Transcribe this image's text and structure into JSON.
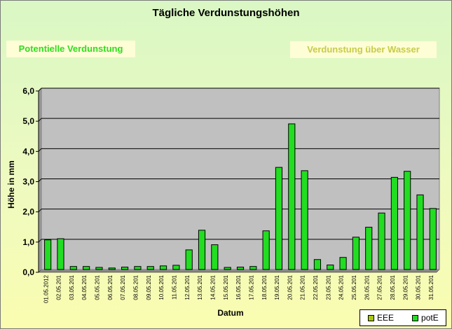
{
  "title": "Tägliche Verdunstungshöhen",
  "tabs": {
    "left_label": "Potentielle Verdunstung",
    "right_label": "Verdunstung über Wasser"
  },
  "legend": {
    "items": [
      {
        "label": "EEE",
        "color": "#a8c80e"
      },
      {
        "label": "potE",
        "color": "#22dd22"
      }
    ]
  },
  "colors": {
    "bar": "#22dd22",
    "plot_bg": "#c0c0c0",
    "grid": "#000000"
  },
  "chart_data": {
    "type": "bar",
    "title": "Tägliche Verdunstungshöhen",
    "xlabel": "Datum",
    "ylabel": "Höhe in mm",
    "ylim": [
      0,
      6
    ],
    "yticks": [
      "0,0",
      "1,0",
      "2,0",
      "3,0",
      "4,0",
      "5,0",
      "6,0"
    ],
    "grid": true,
    "legend_position": "bottom-right",
    "categories": [
      "01.05.2012",
      "02.05.201",
      "03.05.201",
      "04.05.201",
      "05.05.201",
      "06.05.201",
      "07.05.201",
      "08.05.201",
      "09.05.201",
      "10.05.201",
      "11.05.201",
      "12.05.201",
      "13.05.201",
      "14.05.201",
      "15.05.201",
      "16.05.201",
      "17.05.201",
      "18.05.201",
      "19.05.201",
      "20.05.201",
      "21.05.201",
      "22.05.201",
      "23.05.201",
      "24.05.201",
      "25.05.201",
      "26.05.201",
      "27.05.201",
      "28.05.201",
      "29.05.201",
      "30.05.201",
      "31.05.201"
    ],
    "series": [
      {
        "name": "potE",
        "values": [
          0.98,
          1.02,
          0.1,
          0.1,
          0.07,
          0.05,
          0.08,
          0.1,
          0.1,
          0.12,
          0.14,
          0.65,
          1.3,
          0.82,
          0.07,
          0.08,
          0.1,
          1.28,
          3.38,
          4.82,
          3.27,
          0.33,
          0.15,
          0.4,
          1.07,
          1.4,
          1.87,
          3.05,
          3.25,
          2.47,
          2.02
        ]
      }
    ]
  }
}
